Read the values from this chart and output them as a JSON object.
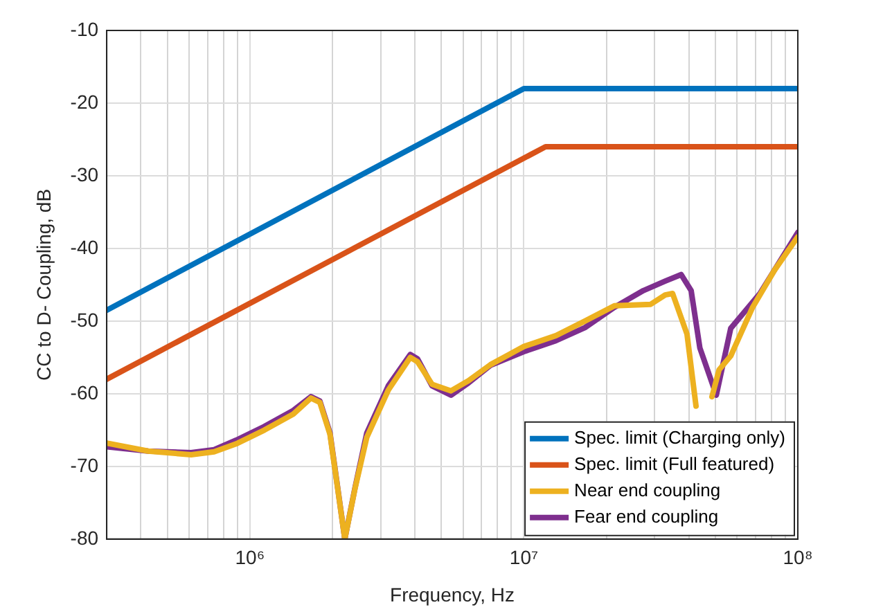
{
  "chart_data": {
    "type": "line",
    "xlabel": "Frequency, Hz",
    "ylabel": "CC to D- Coupling, dB",
    "log": "x",
    "grid": true,
    "legend": "bottom right",
    "line_style": "solid",
    "marker": "none",
    "xlim": [
      300000,
      100000000
    ],
    "ylim": [
      -80,
      -10
    ],
    "xticks": [
      {
        "value": 300000,
        "label": null
      },
      {
        "value": 400000,
        "label": null
      },
      {
        "value": 500000,
        "label": null
      },
      {
        "value": 600000,
        "label": null
      },
      {
        "value": 700000,
        "label": null
      },
      {
        "value": 800000,
        "label": null
      },
      {
        "value": 900000,
        "label": null
      },
      {
        "value": 1000000,
        "label": "10⁶"
      },
      {
        "value": 2000000,
        "label": null
      },
      {
        "value": 3000000,
        "label": null
      },
      {
        "value": 4000000,
        "label": null
      },
      {
        "value": 5000000,
        "label": null
      },
      {
        "value": 6000000,
        "label": null
      },
      {
        "value": 7000000,
        "label": null
      },
      {
        "value": 8000000,
        "label": null
      },
      {
        "value": 9000000,
        "label": null
      },
      {
        "value": 10000000,
        "label": "10⁷"
      },
      {
        "value": 20000000,
        "label": null
      },
      {
        "value": 30000000,
        "label": null
      },
      {
        "value": 40000000,
        "label": null
      },
      {
        "value": 50000000,
        "label": null
      },
      {
        "value": 60000000,
        "label": null
      },
      {
        "value": 70000000,
        "label": null
      },
      {
        "value": 80000000,
        "label": null
      },
      {
        "value": 90000000,
        "label": null
      },
      {
        "value": 100000000,
        "label": "10⁸"
      }
    ],
    "yticks": [
      -80,
      -70,
      -60,
      -50,
      -40,
      -30,
      -20,
      -10
    ],
    "series": [
      {
        "name": "Spec. limit (Charging only)",
        "color": "#0072bd",
        "x": [
          300000,
          10000000,
          100000000
        ],
        "values": [
          -48.5,
          -18,
          -18
        ]
      },
      {
        "name": "Spec. limit (Full featured)",
        "color": "#d95319",
        "x": [
          300000,
          12000000,
          100000000
        ],
        "values": [
          -58,
          -26,
          -26
        ]
      },
      {
        "name": "Near end coupling",
        "color": "#edb120",
        "x": [
          300000,
          425000,
          610000,
          740000,
          890000,
          1130000,
          1440000,
          1670000,
          1800000,
          1960000,
          2090000,
          2220000,
          2420000,
          2670000,
          3200000,
          3850000,
          4090000,
          4620000,
          5420000,
          6280000,
          7550000,
          10000000,
          13100000,
          16700000,
          21400000,
          29000000,
          32800000,
          34900000,
          39400000,
          42500000,
          44600000,
          48600000,
          51600000,
          56900000,
          68400000,
          82200000,
          100000000
        ],
        "values": [
          -66.8,
          -67.9,
          -68.4,
          -68,
          -66.9,
          -65,
          -62.8,
          -60.6,
          -61.2,
          -65.6,
          -73,
          -80,
          -73,
          -66,
          -59.5,
          -55,
          -55.6,
          -58.7,
          -59.6,
          -58.2,
          -56,
          -53.5,
          -52,
          -50,
          -47.9,
          -47.7,
          -46.4,
          -46.2,
          -51.8,
          -61.7,
          null,
          -60.4,
          -56.7,
          -54.8,
          -48.1,
          -43,
          -38.4
        ]
      },
      {
        "name": "Fear end coupling",
        "color": "#7e2f8e",
        "x": [
          300000,
          425000,
          610000,
          740000,
          890000,
          1130000,
          1440000,
          1670000,
          1800000,
          1960000,
          2090000,
          2220000,
          2420000,
          2670000,
          3200000,
          3850000,
          4090000,
          4620000,
          5420000,
          6280000,
          7550000,
          10000000,
          13100000,
          16700000,
          21400000,
          27300000,
          32800000,
          37500000,
          40800000,
          43900000,
          50400000,
          56900000,
          72700000,
          100000000
        ],
        "values": [
          -67.3,
          -67.9,
          -68.1,
          -67.7,
          -66.4,
          -64.5,
          -62.3,
          -60.4,
          -61,
          -65.4,
          -72.9,
          -80,
          -72.9,
          -65.4,
          -58.9,
          -54.6,
          -55.2,
          -58.9,
          -60.2,
          -58.5,
          -56.1,
          -54.2,
          -52.7,
          -50.9,
          -48.1,
          -45.8,
          -44.5,
          -43.6,
          -45.8,
          -53.7,
          -60.2,
          -51,
          -46.2,
          -37.8
        ]
      }
    ]
  }
}
